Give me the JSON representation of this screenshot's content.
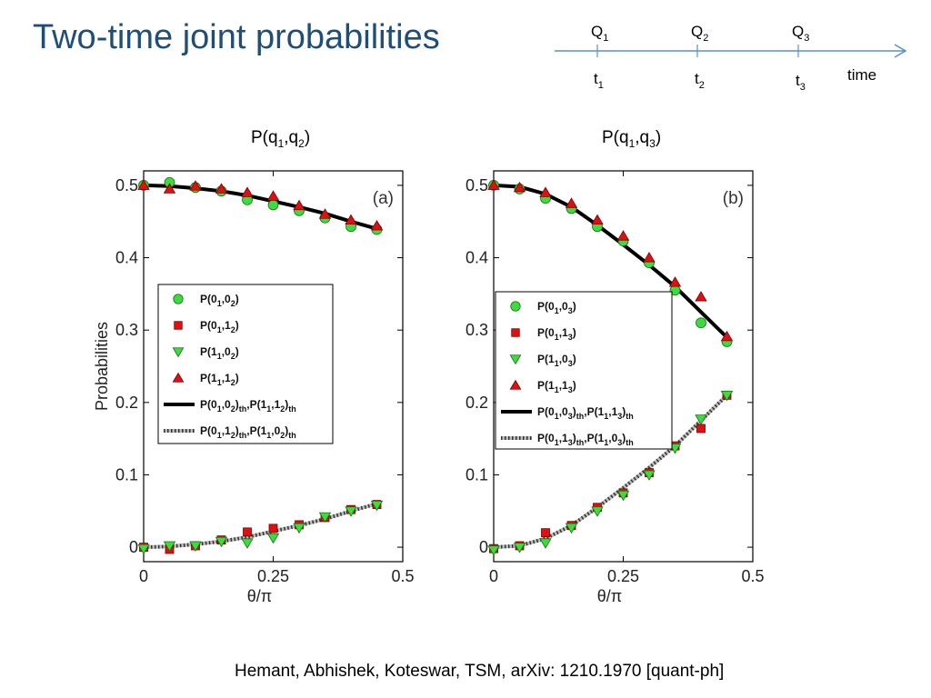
{
  "slide": {
    "title": "Two-time joint probabilities",
    "citation": "Hemant, Abhishek, Koteswar, TSM, arXiv: 1210.1970 [quant-ph]"
  },
  "timeline": {
    "measurements": [
      {
        "base": "Q",
        "sub": "1"
      },
      {
        "base": "Q",
        "sub": "2"
      },
      {
        "base": "Q",
        "sub": "3"
      }
    ],
    "times": [
      {
        "base": "t",
        "sub": "1"
      },
      {
        "base": "t",
        "sub": "2"
      },
      {
        "base": "t",
        "sub": "3"
      }
    ],
    "axis_label": "time"
  },
  "headers": {
    "a": {
      "prefix": "P(q",
      "s1": "1",
      "mid": ",q",
      "s2": "2",
      "suffix": ")"
    },
    "b": {
      "prefix": "P(q",
      "s1": "1",
      "mid": ",q",
      "s2": "3",
      "suffix": ")"
    }
  },
  "colors": {
    "green": "#3cdc3c",
    "red": "#e01010",
    "title_blue": "#1f4e79",
    "timeline_blue": "#5b8fcf"
  },
  "chart_data": [
    {
      "type": "scatter",
      "panel_label": "(a)",
      "xlabel": "θ/π",
      "ylabel": "Probabilities",
      "xlim": [
        0,
        0.5
      ],
      "ylim": [
        -0.02,
        0.52
      ],
      "xticks": [
        0,
        0.25,
        0.5
      ],
      "xtick_labels": [
        "0",
        "0.25",
        "0.5"
      ],
      "yticks": [
        0,
        0.1,
        0.2,
        0.3,
        0.4,
        0.5
      ],
      "ytick_labels": [
        "0",
        "0.1",
        "0.2",
        "0.3",
        "0.4",
        "0.5"
      ],
      "legend_position": "center-left",
      "series": [
        {
          "name": "P(0_1,0_2)",
          "marker": "circle",
          "color": "#3cdc3c",
          "x": [
            0,
            0.05,
            0.1,
            0.15,
            0.2,
            0.25,
            0.3,
            0.35,
            0.4,
            0.45
          ],
          "y": [
            0.5,
            0.504,
            0.497,
            0.492,
            0.48,
            0.473,
            0.465,
            0.455,
            0.443,
            0.439
          ]
        },
        {
          "name": "P(0_1,1_2)",
          "marker": "square",
          "color": "#e01010",
          "x": [
            0,
            0.05,
            0.1,
            0.15,
            0.2,
            0.25,
            0.3,
            0.35,
            0.4,
            0.45
          ],
          "y": [
            0,
            -0.003,
            0.002,
            0.01,
            0.021,
            0.026,
            0.031,
            0.041,
            0.052,
            0.059
          ]
        },
        {
          "name": "P(1_1,0_2)",
          "marker": "triangle-down",
          "color": "#3cdc3c",
          "x": [
            0,
            0.05,
            0.1,
            0.15,
            0.2,
            0.25,
            0.3,
            0.35,
            0.4,
            0.45
          ],
          "y": [
            -0.002,
            0.002,
            0.002,
            0.008,
            0.006,
            0.013,
            0.027,
            0.042,
            0.05,
            0.058
          ]
        },
        {
          "name": "P(1_1,1_2)",
          "marker": "triangle-up",
          "color": "#e01010",
          "x": [
            0,
            0.05,
            0.1,
            0.15,
            0.2,
            0.25,
            0.3,
            0.35,
            0.4,
            0.45
          ],
          "y": [
            0.5,
            0.495,
            0.499,
            0.495,
            0.49,
            0.485,
            0.472,
            0.46,
            0.452,
            0.444
          ]
        },
        {
          "name": "P(0_1,0_2)_th, P(1_1,1_2)_th",
          "line": "solid",
          "color": "#000000",
          "x": [
            0,
            0.05,
            0.1,
            0.15,
            0.2,
            0.25,
            0.3,
            0.35,
            0.4,
            0.45
          ],
          "y": [
            0.5,
            0.499,
            0.496,
            0.492,
            0.486,
            0.478,
            0.47,
            0.461,
            0.45,
            0.44
          ]
        },
        {
          "name": "P(0_1,1_2)_th, P(1_1,0_2)_th",
          "line": "dotted",
          "color": "#555555",
          "x": [
            0,
            0.05,
            0.1,
            0.15,
            0.2,
            0.25,
            0.3,
            0.35,
            0.4,
            0.45
          ],
          "y": [
            0,
            0.001,
            0.004,
            0.008,
            0.014,
            0.022,
            0.03,
            0.039,
            0.05,
            0.06
          ]
        }
      ],
      "legend": [
        {
          "sym": "circle",
          "color": "#3cdc3c",
          "parts": [
            "P(0",
            "1",
            ",0",
            "2",
            ")"
          ]
        },
        {
          "sym": "square",
          "color": "#e01010",
          "parts": [
            "P(0",
            "1",
            ",1",
            "2",
            ")"
          ]
        },
        {
          "sym": "triangle-down",
          "color": "#3cdc3c",
          "parts": [
            "P(1",
            "1",
            ",0",
            "2",
            ")"
          ]
        },
        {
          "sym": "triangle-up",
          "color": "#e01010",
          "parts": [
            "P(1",
            "1",
            ",1",
            "2",
            ")"
          ]
        },
        {
          "sym": "solid",
          "color": "#000000",
          "parts": [
            "P(0",
            "1",
            ",0",
            "2",
            ")",
            "th",
            ",P(1",
            "1",
            ",1",
            "2",
            ")",
            "th"
          ]
        },
        {
          "sym": "dotted",
          "color": "#555555",
          "parts": [
            "P(0",
            "1",
            ",1",
            "2",
            ")",
            "th",
            ",P(1",
            "1",
            ",0",
            "2",
            ")",
            "th"
          ]
        }
      ]
    },
    {
      "type": "scatter",
      "panel_label": "(b)",
      "xlabel": "θ/π",
      "ylabel": "",
      "xlim": [
        0,
        0.5
      ],
      "ylim": [
        -0.02,
        0.52
      ],
      "xticks": [
        0,
        0.25,
        0.5
      ],
      "xtick_labels": [
        "0",
        "0.25",
        "0.5"
      ],
      "yticks": [
        0,
        0.1,
        0.2,
        0.3,
        0.4,
        0.5
      ],
      "ytick_labels": [
        "0",
        "0.1",
        "0.2",
        "0.3",
        "0.4",
        "0.5"
      ],
      "legend_position": "center-left",
      "series": [
        {
          "name": "P(0_1,0_3)",
          "marker": "circle",
          "color": "#3cdc3c",
          "x": [
            0,
            0.05,
            0.1,
            0.15,
            0.2,
            0.25,
            0.3,
            0.35,
            0.4,
            0.45
          ],
          "y": [
            0.5,
            0.495,
            0.482,
            0.468,
            0.443,
            0.423,
            0.393,
            0.355,
            0.31,
            0.284
          ]
        },
        {
          "name": "P(0_1,1_3)",
          "marker": "square",
          "color": "#e01010",
          "x": [
            0,
            0.05,
            0.1,
            0.15,
            0.2,
            0.25,
            0.3,
            0.35,
            0.4,
            0.45
          ],
          "y": [
            -0.002,
            0.002,
            0.02,
            0.03,
            0.055,
            0.075,
            0.103,
            0.14,
            0.164,
            0.21
          ]
        },
        {
          "name": "P(1_1,0_3)",
          "marker": "triangle-down",
          "color": "#3cdc3c",
          "x": [
            0,
            0.05,
            0.1,
            0.15,
            0.2,
            0.25,
            0.3,
            0.35,
            0.4,
            0.45
          ],
          "y": [
            -0.004,
            0.0,
            0.006,
            0.027,
            0.05,
            0.072,
            0.1,
            0.137,
            0.177,
            0.21
          ]
        },
        {
          "name": "P(1_1,1_3)",
          "marker": "triangle-up",
          "color": "#e01010",
          "x": [
            0,
            0.05,
            0.1,
            0.15,
            0.2,
            0.25,
            0.3,
            0.35,
            0.4,
            0.45
          ],
          "y": [
            0.5,
            0.497,
            0.49,
            0.475,
            0.452,
            0.43,
            0.4,
            0.366,
            0.346,
            0.291
          ]
        },
        {
          "name": "P(0_1,0_3)_th, P(1_1,1_3)_th",
          "line": "solid",
          "color": "#000000",
          "x": [
            0,
            0.05,
            0.1,
            0.15,
            0.2,
            0.25,
            0.3,
            0.35,
            0.4,
            0.45
          ],
          "y": [
            0.5,
            0.498,
            0.488,
            0.47,
            0.445,
            0.418,
            0.39,
            0.36,
            0.325,
            0.29
          ]
        },
        {
          "name": "P(0_1,1_3)_th, P(1_1,0_3)_th",
          "line": "dotted",
          "color": "#555555",
          "x": [
            0,
            0.05,
            0.1,
            0.15,
            0.2,
            0.25,
            0.3,
            0.35,
            0.4,
            0.45
          ],
          "y": [
            0,
            0.002,
            0.012,
            0.03,
            0.055,
            0.082,
            0.11,
            0.14,
            0.175,
            0.21
          ]
        }
      ],
      "legend": [
        {
          "sym": "circle",
          "color": "#3cdc3c",
          "parts": [
            "P(0",
            "1",
            ",0",
            "3",
            ")"
          ]
        },
        {
          "sym": "square",
          "color": "#e01010",
          "parts": [
            "P(0",
            "1",
            ",1",
            "3",
            ")"
          ]
        },
        {
          "sym": "triangle-down",
          "color": "#3cdc3c",
          "parts": [
            "P(1",
            "1",
            ",0",
            "3",
            ")"
          ]
        },
        {
          "sym": "triangle-up",
          "color": "#e01010",
          "parts": [
            "P(1",
            "1",
            ",1",
            "3",
            ")"
          ]
        },
        {
          "sym": "solid",
          "color": "#000000",
          "parts": [
            "P(0",
            "1",
            ",0",
            "3",
            ")",
            "th",
            ",P(1",
            "1",
            ",1",
            "3",
            ")",
            "th"
          ]
        },
        {
          "sym": "dotted",
          "color": "#555555",
          "parts": [
            "P(0",
            "1",
            ",1",
            "3",
            ")",
            "th",
            ",P(1",
            "1",
            ",0",
            "3",
            ")",
            "th"
          ]
        }
      ]
    }
  ]
}
